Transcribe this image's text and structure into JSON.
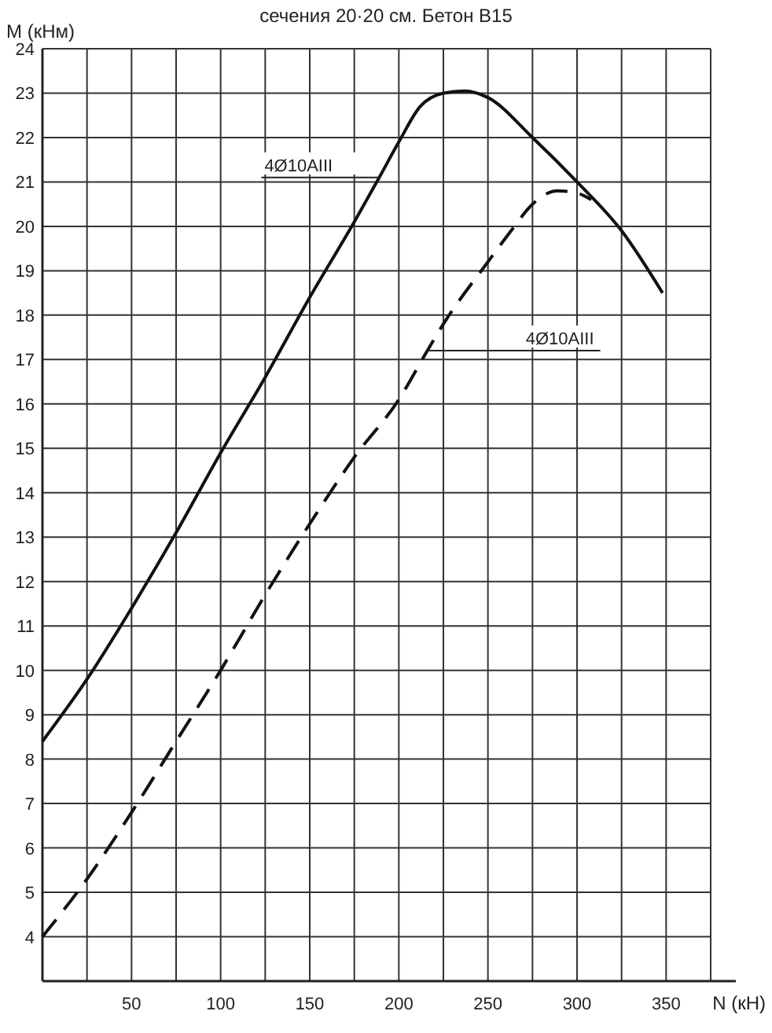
{
  "chart_data": {
    "type": "line",
    "title": "сечения 20·20 см. Бетон В15",
    "xlabel": "N (кН)",
    "ylabel": "M (кНм)",
    "xlim": [
      0,
      375
    ],
    "ylim": [
      3,
      24
    ],
    "xticks": [
      {
        "value": 25,
        "label": null
      },
      50,
      {
        "value": 75,
        "label": null
      },
      100,
      {
        "value": 125,
        "label": null
      },
      150,
      {
        "value": 175,
        "label": null
      },
      200,
      {
        "value": 225,
        "label": null
      },
      250,
      {
        "value": 275,
        "label": null
      },
      300,
      {
        "value": 325,
        "label": null
      },
      350,
      {
        "value": 375,
        "label": null
      }
    ],
    "yticks": [
      4,
      5,
      6,
      7,
      8,
      9,
      10,
      11,
      12,
      13,
      14,
      15,
      16,
      17,
      18,
      19,
      20,
      21,
      22,
      23,
      24
    ],
    "grid": true,
    "series": [
      {
        "color": "#111111",
        "line_style": "solid",
        "x": [
          0,
          25,
          50,
          75,
          100,
          125,
          150,
          175,
          189,
          200,
          212,
          225,
          237,
          250,
          275,
          300,
          325,
          348
        ],
        "values": [
          8.4,
          9.8,
          11.4,
          13.1,
          14.9,
          16.6,
          18.4,
          20.1,
          21.1,
          21.9,
          22.7,
          23.0,
          23.05,
          22.9,
          22.0,
          21.0,
          19.9,
          18.5
        ]
      },
      {
        "color": "#111111",
        "line_style": "dashed",
        "x": [
          0,
          25,
          50,
          75,
          100,
          125,
          150,
          175,
          200,
          216,
          225,
          250,
          263,
          275,
          289,
          300,
          308
        ],
        "values": [
          4.0,
          5.3,
          6.8,
          8.4,
          10.0,
          11.7,
          13.3,
          14.8,
          16.1,
          17.2,
          17.8,
          19.2,
          19.9,
          20.5,
          20.8,
          20.75,
          20.6
        ]
      }
    ],
    "annotations": [
      {
        "text": "4Ø10AIII",
        "x": 189,
        "y": 21.1
      },
      {
        "text": "4Ø10AIII",
        "x": 216,
        "y": 17.2
      }
    ]
  }
}
